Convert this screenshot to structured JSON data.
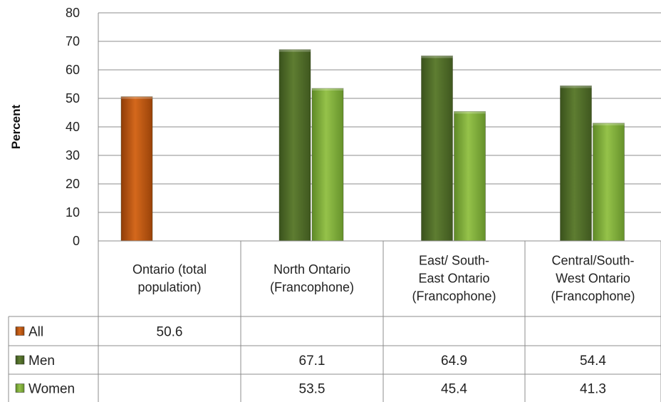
{
  "chart_data": {
    "type": "bar",
    "ylabel": "Percent",
    "ylim": [
      0,
      80
    ],
    "yticks": [
      0,
      10,
      20,
      30,
      40,
      50,
      60,
      70,
      80
    ],
    "grid": true,
    "categories": [
      [
        "Ontario (total",
        "population)"
      ],
      [
        "North Ontario",
        "(Francophone)"
      ],
      [
        "East/ South-",
        "East Ontario",
        "(Francophone)"
      ],
      [
        "Central/South-",
        "West Ontario",
        "(Francophone)"
      ]
    ],
    "series": [
      {
        "name": "All",
        "color": "#b5520f",
        "values": [
          50.6,
          null,
          null,
          null
        ]
      },
      {
        "name": "Men",
        "color": "#4f6b2a",
        "values": [
          null,
          67.1,
          64.9,
          54.4
        ]
      },
      {
        "name": "Women",
        "color": "#7ea43c",
        "values": [
          null,
          53.5,
          45.4,
          41.3
        ]
      }
    ],
    "data_table": true,
    "table_values": [
      [
        "50.6",
        "",
        "",
        ""
      ],
      [
        "",
        "67.1",
        "64.9",
        "54.4"
      ],
      [
        "",
        "53.5",
        "45.4",
        "41.3"
      ]
    ]
  }
}
